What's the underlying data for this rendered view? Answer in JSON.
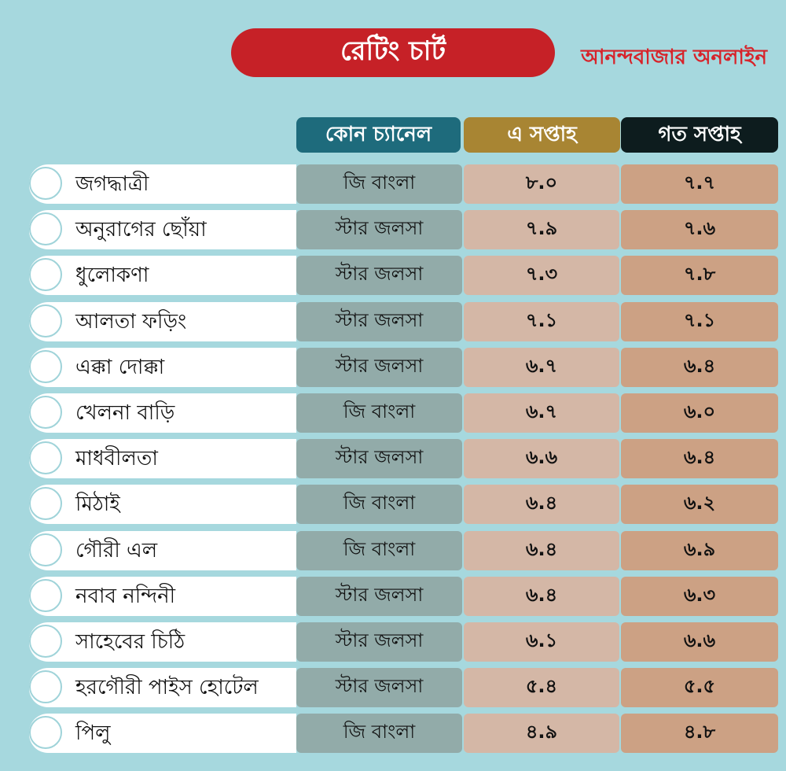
{
  "title": "রেটিং চার্ট",
  "brand": "আনন্দবাজার অনলাইন",
  "colors": {
    "background": "#a6d8de",
    "title_bg": "#c62127",
    "brand_text": "#d7232a",
    "header_channel": "#1e6b7c",
    "header_this_week": "#a88533",
    "header_last_week": "#0d1c1e"
  },
  "chart_data": {
    "type": "table",
    "title": "রেটিং চার্ট",
    "columns": [
      "কোন চ্যানেল",
      "এ সপ্তাহ",
      "গত সপ্তাহ"
    ],
    "rows": [
      {
        "name": "জগদ্ধাত্রী",
        "channel": "জি বাংলা",
        "this_week": "৮.০",
        "last_week": "৭.৭",
        "this_week_value": 8.0,
        "last_week_value": 7.7
      },
      {
        "name": "অনুরাগের ছোঁয়া",
        "channel": "স্টার জলসা",
        "this_week": "৭.৯",
        "last_week": "৭.৬",
        "this_week_value": 7.9,
        "last_week_value": 7.6
      },
      {
        "name": "ধুলোকণা",
        "channel": "স্টার জলসা",
        "this_week": "৭.৩",
        "last_week": "৭.৮",
        "this_week_value": 7.3,
        "last_week_value": 7.8
      },
      {
        "name": "আলতা ফড়িং",
        "channel": "স্টার জলসা",
        "this_week": "৭.১",
        "last_week": "৭.১",
        "this_week_value": 7.1,
        "last_week_value": 7.1
      },
      {
        "name": "এক্কা দোক্কা",
        "channel": "স্টার জলসা",
        "this_week": "৬.৭",
        "last_week": "৬.৪",
        "this_week_value": 6.7,
        "last_week_value": 6.4
      },
      {
        "name": "খেলনা বাড়ি",
        "channel": "জি বাংলা",
        "this_week": "৬.৭",
        "last_week": "৬.০",
        "this_week_value": 6.7,
        "last_week_value": 6.0
      },
      {
        "name": "মাধবীলতা",
        "channel": "স্টার জলসা",
        "this_week": "৬.৬",
        "last_week": "৬.৪",
        "this_week_value": 6.6,
        "last_week_value": 6.4
      },
      {
        "name": "মিঠাই",
        "channel": "জি বাংলা",
        "this_week": "৬.৪",
        "last_week": "৬.২",
        "this_week_value": 6.4,
        "last_week_value": 6.2
      },
      {
        "name": "গৌরী এল",
        "channel": "জি বাংলা",
        "this_week": "৬.৪",
        "last_week": "৬.৯",
        "this_week_value": 6.4,
        "last_week_value": 6.9
      },
      {
        "name": "নবাব নন্দিনী",
        "channel": "স্টার জলসা",
        "this_week": "৬.৪",
        "last_week": "৬.৩",
        "this_week_value": 6.4,
        "last_week_value": 6.3
      },
      {
        "name": "সাহেবের চিঠি",
        "channel": "স্টার জলসা",
        "this_week": "৬.১",
        "last_week": "৬.৬",
        "this_week_value": 6.1,
        "last_week_value": 6.6
      },
      {
        "name": "হরগৌরী পাইস হোটেল",
        "channel": "স্টার জলসা",
        "this_week": "৫.৪",
        "last_week": "৫.৫",
        "this_week_value": 5.4,
        "last_week_value": 5.5
      },
      {
        "name": "পিলু",
        "channel": "জি বাংলা",
        "this_week": "৪.৯",
        "last_week": "৪.৮",
        "this_week_value": 4.9,
        "last_week_value": 4.8
      }
    ]
  }
}
